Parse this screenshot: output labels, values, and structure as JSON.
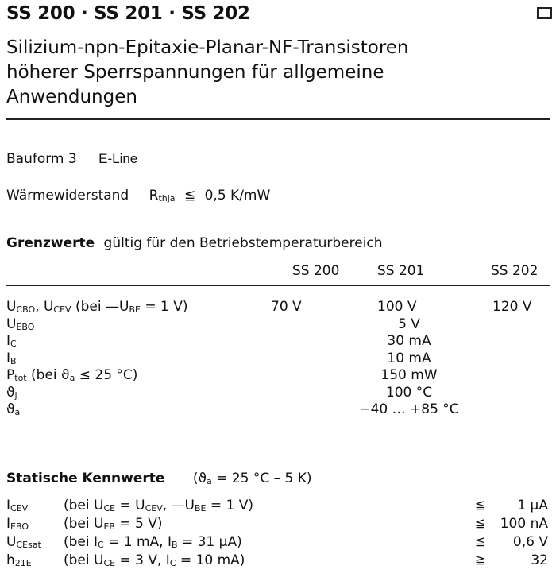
{
  "header": {
    "title": "SS 200 · SS 201 · SS 202",
    "subtitle": "Silizium-npn-Epitaxie-Planar-NF-Transistoren\nhöherer Sperrspannungen für allgemeine\nAnwendungen",
    "box_icon": "square-icon"
  },
  "bauform": {
    "label": "Bauform 3",
    "value": "E-Line"
  },
  "waerme": {
    "label": "Wärmewiderstand",
    "symbol": "R",
    "symbol_sub": "thja",
    "relation": "≦",
    "value": "0,5 K/mW"
  },
  "grenzwerte": {
    "title": "Grenzwerte",
    "title_rest": "gültig für den Betriebstemperaturbereich",
    "columns": [
      "SS 200",
      "SS 201",
      "SS 202"
    ],
    "rows": [
      {
        "sym": "U",
        "sub": "CBO",
        "sym2": ", U",
        "sub2": "CEV",
        "cond": " (bei —U",
        "condsub": "BE",
        "cond2": " = 1 V)",
        "values": [
          "70 V",
          "100 V",
          "120 V"
        ]
      },
      {
        "sym": "U",
        "sub": "EBO",
        "value": "5 V"
      },
      {
        "sym": "I",
        "sub": "C",
        "value": "30 mA"
      },
      {
        "sym": "I",
        "sub": "B",
        "value": "10 mA"
      },
      {
        "sym": "P",
        "sub": "tot",
        "cond": " (bei ϑ",
        "condsub": "a",
        "cond2": " ≤ 25 °C)",
        "value": "150 mW"
      },
      {
        "sym": "ϑ",
        "sub": "j",
        "value": "100 °C"
      },
      {
        "sym": "ϑ",
        "sub": "a",
        "value": "−40 … +85 °C"
      }
    ]
  },
  "statisch": {
    "title": "Statische Kennwerte",
    "cond": "(ϑ",
    "condsub": "a",
    "cond2": " = 25 °C – 5 K)",
    "rows": [
      {
        "sym": "I",
        "sub": "CEV",
        "cond": "(bei U",
        "condsub": "CE",
        "cond2": " = U",
        "condsub2": "CEV",
        "cond3": ", —U",
        "condsub3": "BE",
        "cond4": " = 1 V)",
        "rel": "≦",
        "value": "1 μA"
      },
      {
        "sym": "I",
        "sub": "EBO",
        "cond": "(bei U",
        "condsub": "EB",
        "cond2": " = 5 V)",
        "rel": "≦",
        "value": "100 nA"
      },
      {
        "sym": "U",
        "sub": "CEsat",
        "cond": "(bei I",
        "condsub": "C",
        "cond2": " = 1 mA, I",
        "condsub2": "B",
        "cond3": " = 31 μA)",
        "rel": "≦",
        "value": "0,6 V"
      },
      {
        "sym": "h",
        "sub": "21E",
        "cond": "(bei U",
        "condsub": "CE",
        "cond2": " = 3 V,  I",
        "condsub2": "C",
        "cond3": " = 10 mA)",
        "rel": "≧",
        "value": "32"
      }
    ]
  }
}
